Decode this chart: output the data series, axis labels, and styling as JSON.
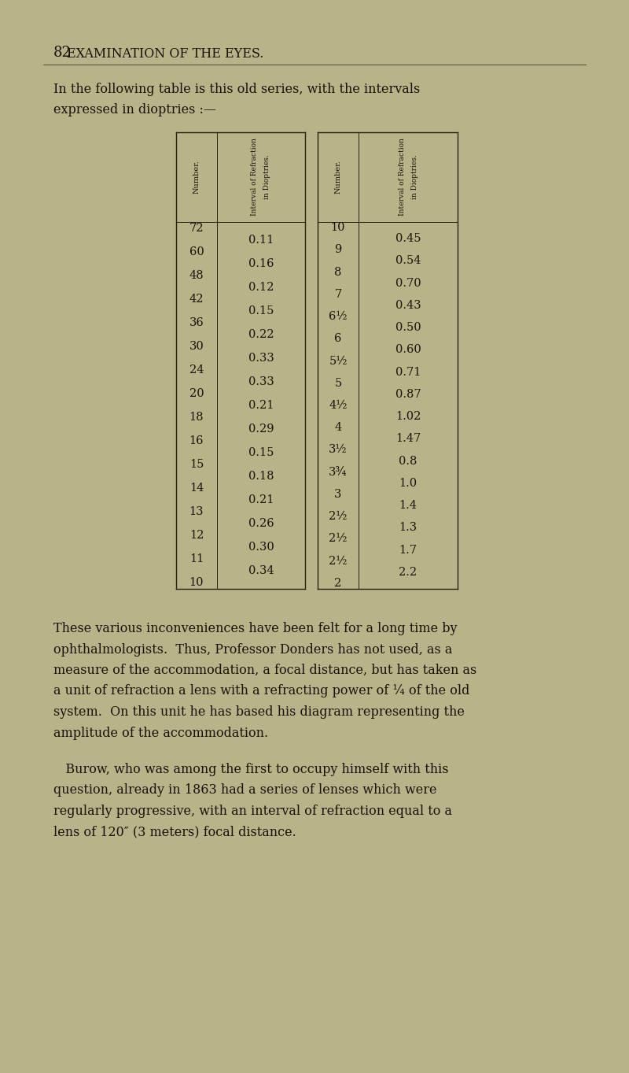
{
  "page_number": "82",
  "page_title": "EXAMINATION OF THE EYES.",
  "intro_line1": "In the following table is this old series, with the intervals",
  "intro_line2": "expressed in dioptries :—",
  "bg_color": "#b8b48a",
  "text_color": "#1c1008",
  "line_color": "#2a2010",
  "font_size_body": 11.5,
  "font_size_title": 11.5,
  "font_size_pagenumber": 13,
  "font_size_table_data": 10.5,
  "font_size_header": 7.0,
  "left_numbers": [
    "72",
    "60",
    "48",
    "42",
    "36",
    "30",
    "24",
    "20",
    "18",
    "16",
    "15",
    "14",
    "13",
    "12",
    "11",
    "10"
  ],
  "left_intervals": [
    "0.11",
    "0.16",
    "0.12",
    "0.15",
    "0.22",
    "0.33",
    "0.33",
    "0.21",
    "0.29",
    "0.15",
    "0.18",
    "0.21",
    "0.26",
    "0.30",
    "0.34",
    ""
  ],
  "right_numbers": [
    "10",
    "9",
    "8",
    "7",
    "6½",
    "6",
    "5½",
    "5",
    "4½",
    "4",
    "3½",
    "3¾",
    "3",
    "2½",
    "2½",
    "2½",
    "2"
  ],
  "right_intervals": [
    "0.45",
    "0.54",
    "0.70",
    "0.43",
    "0.50",
    "0.60",
    "0.71",
    "0.87",
    "1.02",
    "1.47",
    "0.8",
    "1.0",
    "1.4",
    "1.3",
    "1.7",
    "2.2",
    ""
  ],
  "para1_lines": [
    "These various inconveniences have been felt for a long time by",
    "ophthalmologists.  Thus, Professor Donders has not used, as a",
    "measure of the accommodation, a focal distance, but has taken as",
    "a unit of refraction a lens with a refracting power of ⅟₄ of the old",
    "system.  On this unit he has based his diagram representing the",
    "amplitude of the accommodation."
  ],
  "para2_lines": [
    "   Burow, who was among the first to occupy himself with this",
    "question, already in 1863 had a series of lenses which were",
    "regularly progressive, with an interval of refraction equal to a",
    "lens of 120″ (3 meters) focal distance."
  ]
}
